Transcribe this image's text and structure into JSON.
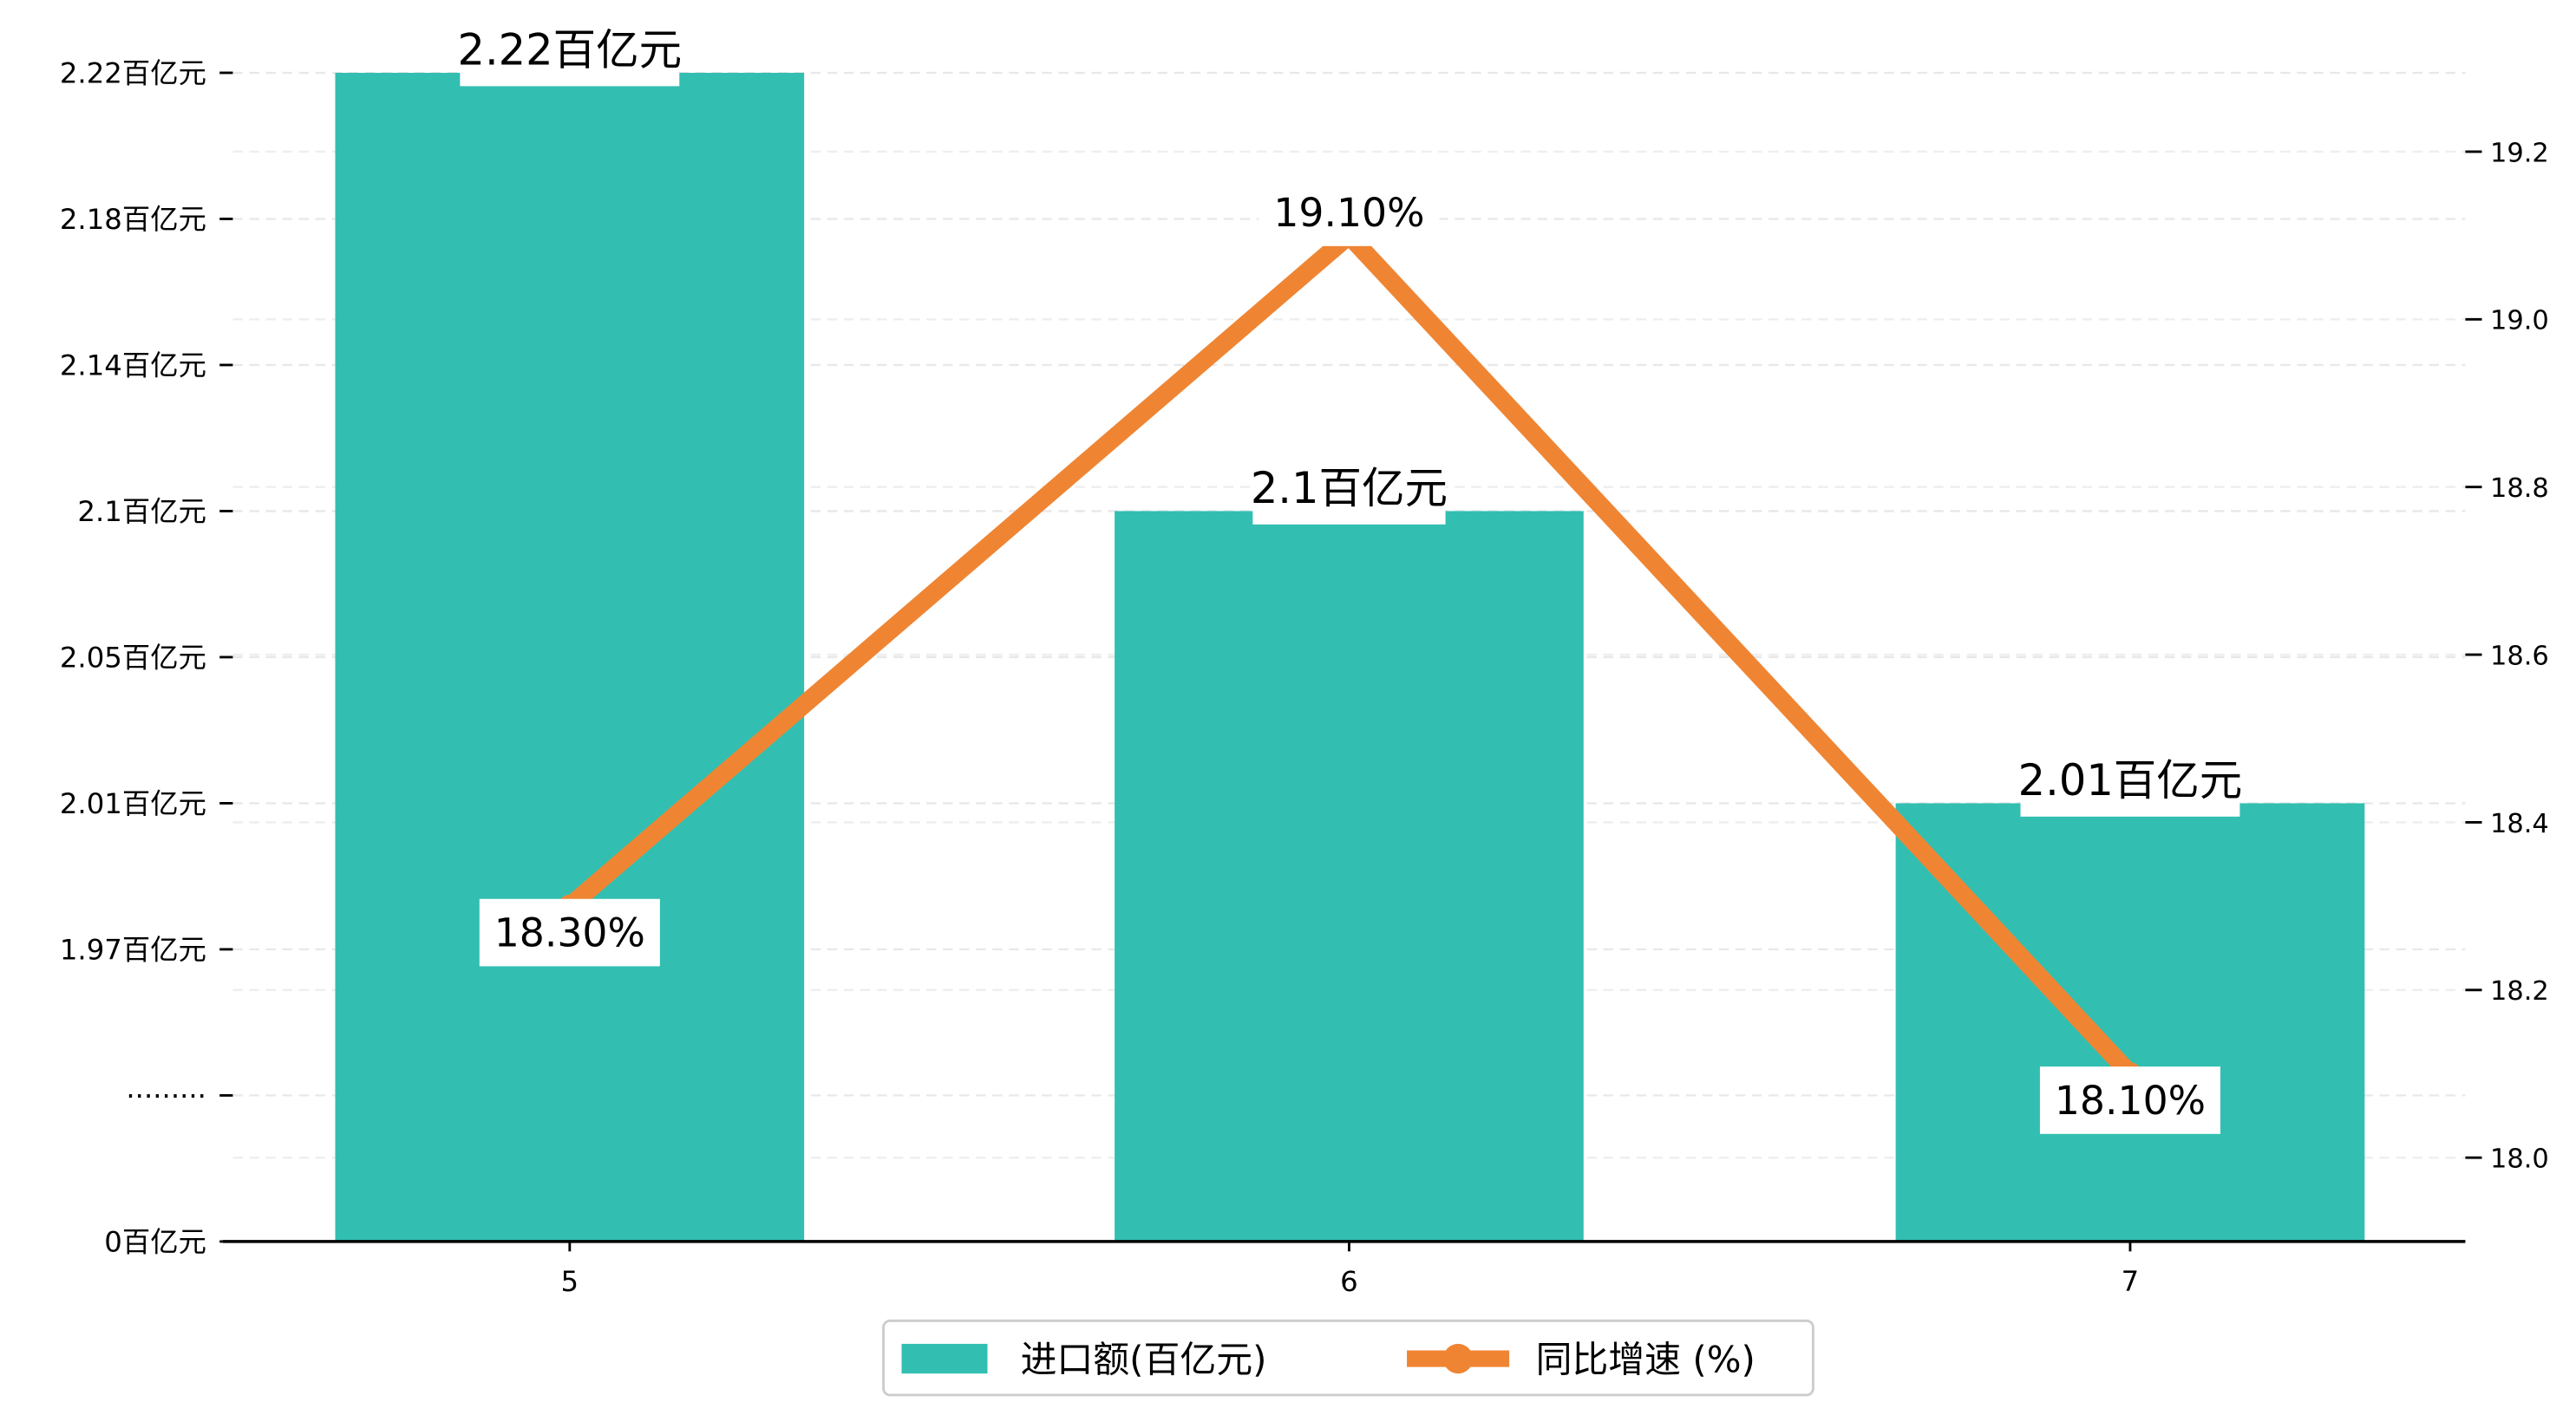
{
  "chart_data": {
    "type": "bar+line",
    "categories": [
      "5",
      "6",
      "7"
    ],
    "series": [
      {
        "name": "进口额(百亿元)",
        "type": "bar",
        "axis": "left",
        "values": [
          2.22,
          2.1,
          2.01
        ],
        "labels": [
          "2.22百亿元",
          "2.1百亿元",
          "2.01百亿元"
        ],
        "color": "#32bfb1"
      },
      {
        "name": "同比增速 (%)",
        "type": "line",
        "axis": "right",
        "values": [
          18.3,
          19.1,
          18.1
        ],
        "labels": [
          "18.30%",
          "19.10%",
          "18.10%"
        ],
        "color": "#ef8533"
      }
    ],
    "left_axis": {
      "ticks": [
        {
          "label": "2.22百亿元",
          "value": 2.22
        },
        {
          "label": "2.18百亿元",
          "value": 2.18
        },
        {
          "label": "2.14百亿元",
          "value": 2.14
        },
        {
          "label": "2.1百亿元",
          "value": 2.1
        },
        {
          "label": "2.05百亿元",
          "value": 2.05
        },
        {
          "label": "2.01百亿元",
          "value": 2.01
        },
        {
          "label": "1.97百亿元",
          "value": 1.97
        },
        {
          "label": "·········",
          "value": null
        },
        {
          "label": "0百亿元",
          "value": 0
        }
      ]
    },
    "right_axis": {
      "ticks": [
        "19.2",
        "19.0",
        "18.8",
        "18.6",
        "18.4",
        "18.2",
        "18.0"
      ],
      "ylim": [
        17.9,
        19.3
      ]
    },
    "grid": true,
    "legend": {
      "placement": "bottom-center",
      "entries": [
        "进口额(百亿元)",
        "同比增速 (%)"
      ]
    }
  }
}
